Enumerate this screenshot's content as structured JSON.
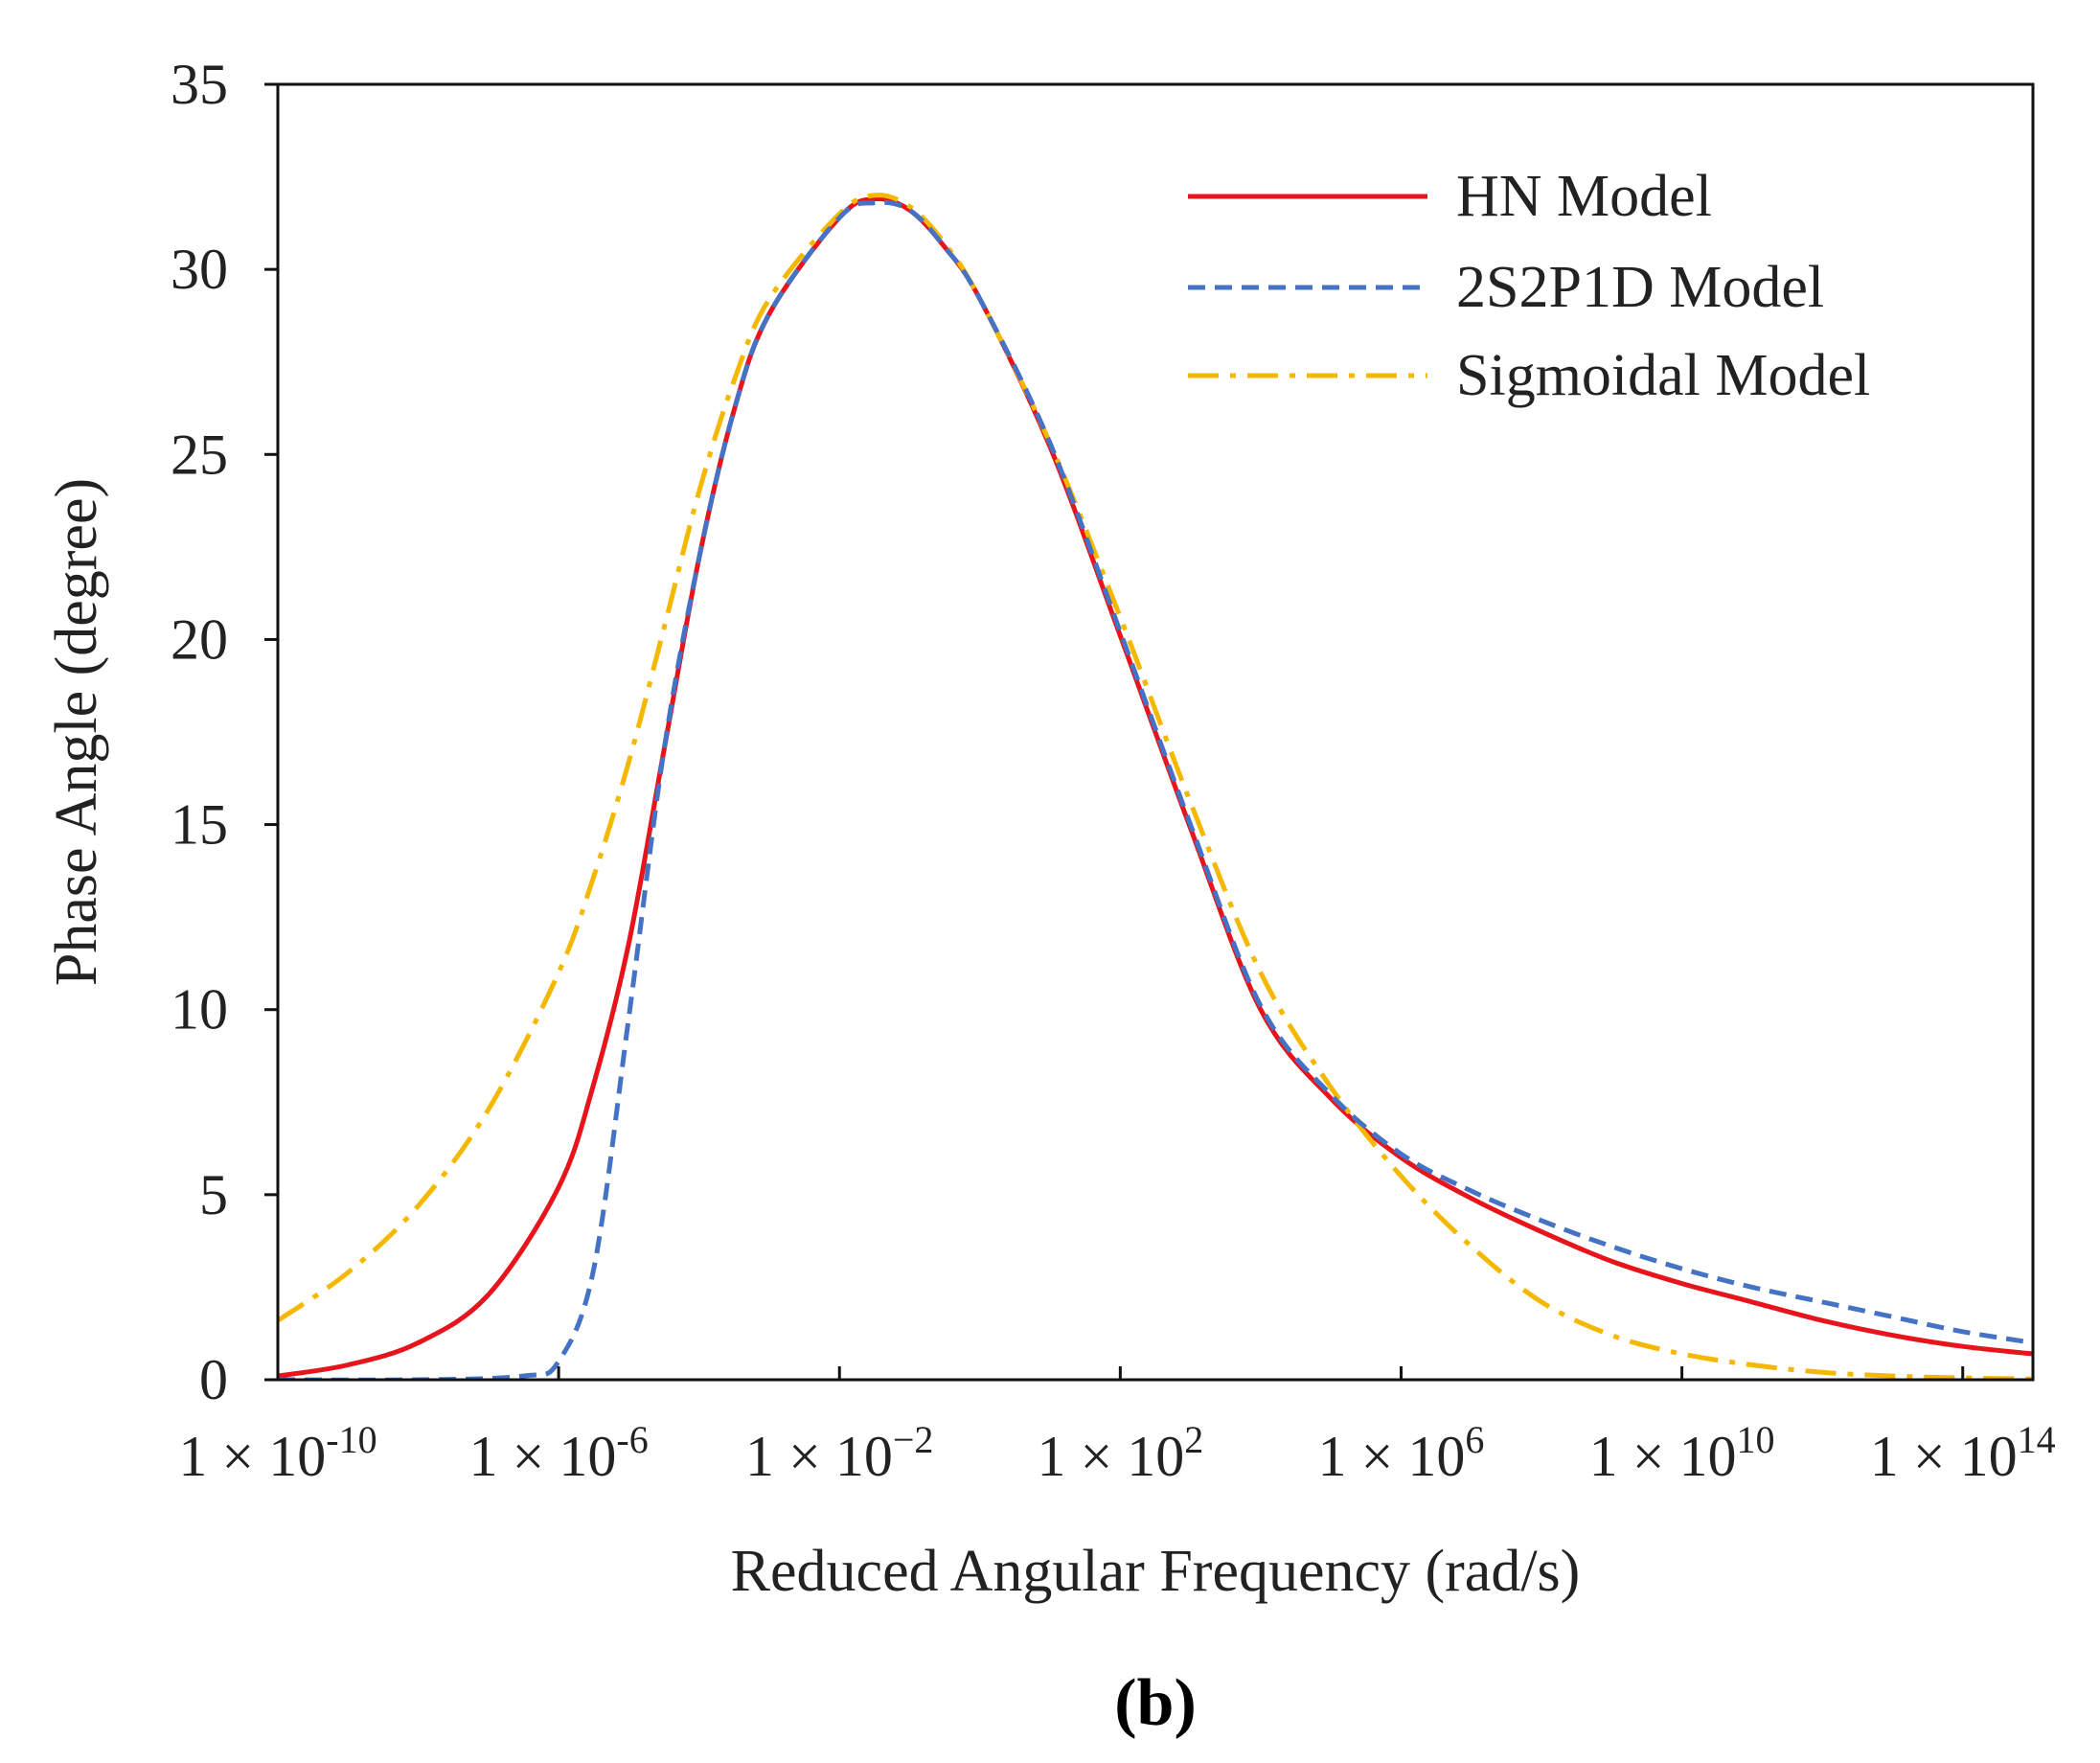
{
  "chart_data": {
    "type": "line",
    "panel_label": "(b)",
    "xlabel": "Reduced Angular Frequency (rad/s)",
    "ylabel": "Phase Angle (degree)",
    "xscale": "log",
    "xlim": [
      1e-10,
      1000000000000000.0
    ],
    "ylim": [
      0,
      35
    ],
    "yticks": [
      0,
      5,
      10,
      15,
      20,
      25,
      30,
      35
    ],
    "xticks": [
      {
        "value": 1e-10,
        "mantissa": "1 × 10",
        "exp": "-10"
      },
      {
        "value": 1e-06,
        "mantissa": "1 × 10",
        "exp": "-6"
      },
      {
        "value": 0.01,
        "mantissa": "1 × 10",
        "exp": "−2"
      },
      {
        "value": 100.0,
        "mantissa": "1 × 10",
        "exp": "2"
      },
      {
        "value": 1000000.0,
        "mantissa": "1 × 10",
        "exp": "6"
      },
      {
        "value": 10000000000.0,
        "mantissa": "1 × 10",
        "exp": "10"
      },
      {
        "value": 100000000000000.0,
        "mantissa": "1 × 10",
        "exp": "14"
      }
    ],
    "legend_position": "top-right",
    "grid": false,
    "series": [
      {
        "name": "HN Model",
        "color": "#e8141c",
        "style": "solid",
        "log10_x": [
          -10,
          -9,
          -8,
          -7,
          -6,
          -5.5,
          -5,
          -4.5,
          -4,
          -3.5,
          -3,
          -2,
          -1.5,
          -1,
          -0.5,
          0,
          1,
          2,
          3,
          4,
          5,
          6,
          7,
          8,
          9,
          10,
          11,
          12,
          13,
          14,
          15
        ],
        "y": [
          0.1,
          0.4,
          1.0,
          2.3,
          5.2,
          8.0,
          11.8,
          17.0,
          22.2,
          26.2,
          28.8,
          31.4,
          31.9,
          31.6,
          30.6,
          29.2,
          25.2,
          20.1,
          14.9,
          10.0,
          7.6,
          6.0,
          4.9,
          4.0,
          3.2,
          2.6,
          2.1,
          1.6,
          1.2,
          0.9,
          0.7
        ]
      },
      {
        "name": "2S2P1D Model",
        "color": "#4472c4",
        "style": "dashed",
        "log10_x": [
          -10,
          -8,
          -6.5,
          -6,
          -5.5,
          -5,
          -4.5,
          -4,
          -3.5,
          -3,
          -2,
          -1.5,
          -1,
          -0.5,
          0,
          1,
          2,
          3,
          4,
          5,
          6,
          7,
          8,
          9,
          10,
          11,
          12,
          13,
          14,
          15
        ],
        "y": [
          0.0,
          0.0,
          0.1,
          0.5,
          3.0,
          9.8,
          17.0,
          22.2,
          26.2,
          28.8,
          31.4,
          31.8,
          31.6,
          30.6,
          29.2,
          25.3,
          20.2,
          15.0,
          10.1,
          7.7,
          6.1,
          5.1,
          4.3,
          3.6,
          3.0,
          2.5,
          2.1,
          1.7,
          1.3,
          1.0
        ]
      },
      {
        "name": "Sigmoidal Model",
        "color": "#f5b800",
        "style": "dashdot",
        "log10_x": [
          -10,
          -9,
          -8,
          -7,
          -6,
          -5.5,
          -5,
          -4.5,
          -4,
          -3.5,
          -3,
          -2,
          -1.5,
          -1,
          -0.5,
          0,
          1,
          2,
          3,
          4,
          5,
          6,
          7,
          8,
          9,
          10,
          11,
          12,
          13,
          14,
          15
        ],
        "y": [
          1.6,
          2.9,
          4.7,
          7.3,
          11.0,
          13.6,
          16.7,
          20.3,
          24.0,
          27.0,
          29.2,
          31.5,
          32.0,
          31.7,
          30.7,
          29.2,
          25.3,
          20.6,
          15.6,
          11.0,
          7.9,
          5.5,
          3.6,
          2.1,
          1.2,
          0.7,
          0.4,
          0.2,
          0.1,
          0.05,
          0.02
        ]
      }
    ]
  }
}
